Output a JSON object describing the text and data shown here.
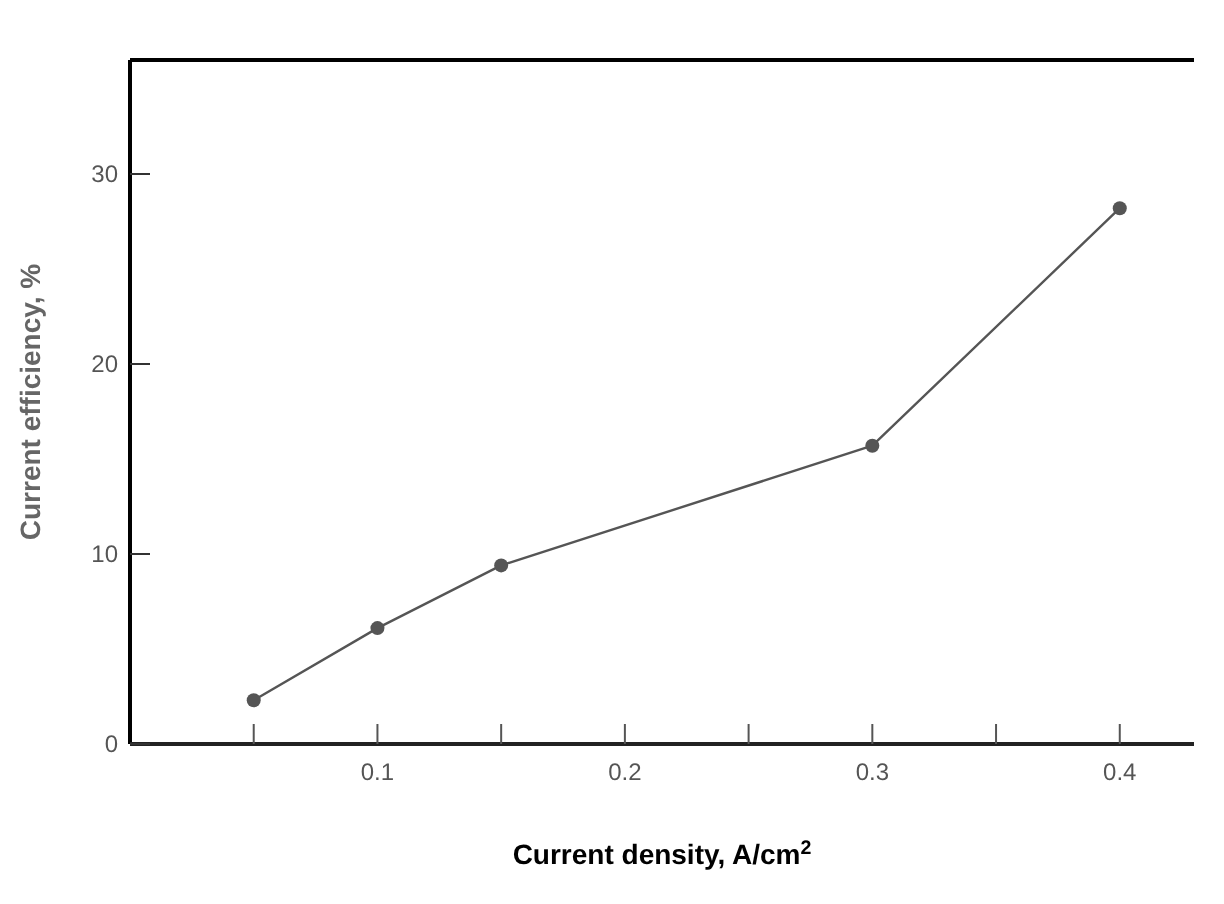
{
  "chart_data": {
    "type": "line",
    "xlabel": "Current density, A/cm$^{2}$",
    "ylabel": "Current efficiency, %",
    "x": [
      0.05,
      0.1,
      0.15,
      0.3,
      0.4
    ],
    "series": [
      {
        "color": "#555555",
        "values": [
          2.3,
          6.1,
          9.4,
          15.7,
          28.2
        ]
      }
    ],
    "xlim": [
      0,
      0.43
    ],
    "ylim": [
      0,
      36
    ],
    "xticks": [
      {
        "value": 0.05,
        "label": null
      },
      0.1,
      {
        "value": 0.15,
        "label": null
      },
      0.2,
      {
        "value": 0.25,
        "label": null
      },
      0.3,
      {
        "value": 0.35,
        "label": null
      },
      0.4
    ],
    "yticks": [
      0,
      10,
      20,
      30
    ],
    "marker": "circle",
    "grid": false
  }
}
